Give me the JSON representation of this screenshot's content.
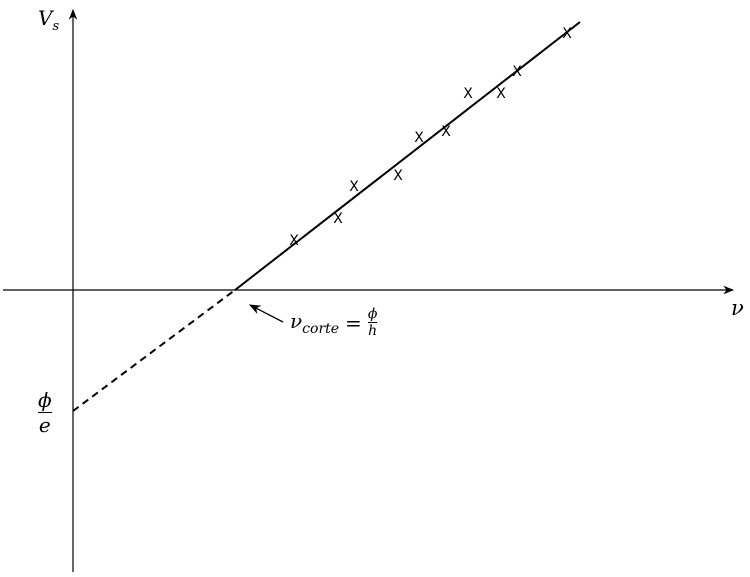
{
  "axes": {
    "y_label": "V",
    "y_label_sub": "s",
    "x_label": "ν"
  },
  "intercept_label": {
    "numerator": "ϕ",
    "denominator": "e"
  },
  "cutoff_label": {
    "symbol": "ν",
    "sub": "corte",
    "equals": "=",
    "numerator": "ϕ",
    "denominator": "h"
  },
  "marker_glyph": "x",
  "colors": {
    "ink": "#000000"
  }
}
